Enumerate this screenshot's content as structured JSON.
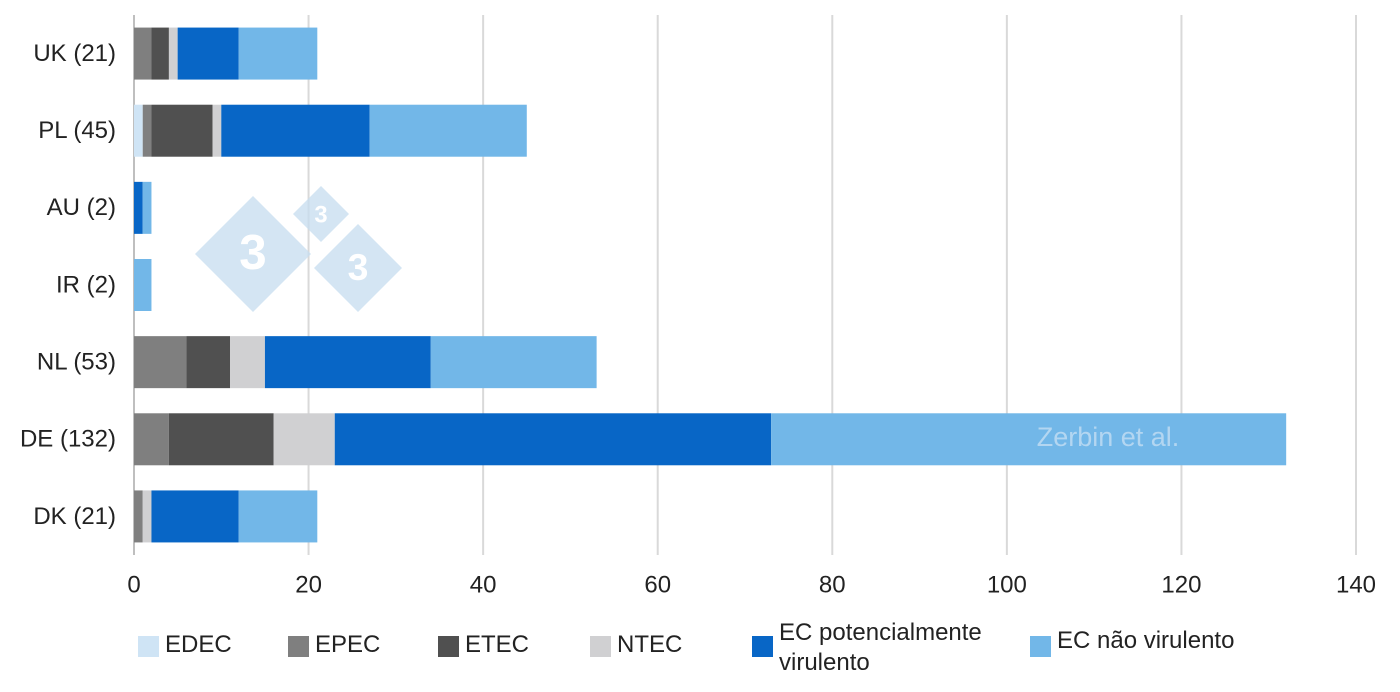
{
  "chart_data": {
    "type": "stacked_barh",
    "categories": [
      "UK (21)",
      "PL (45)",
      "AU (2)",
      "IR (2)",
      "NL (53)",
      "DE (132)",
      "DK (21)"
    ],
    "series": [
      {
        "name": "EDEC",
        "color": "#cfe4f5",
        "values": [
          0,
          1,
          0,
          0,
          0,
          0,
          0
        ]
      },
      {
        "name": "EPEC",
        "color": "#7f7f7f",
        "values": [
          2,
          1,
          0,
          0,
          6,
          4,
          1
        ]
      },
      {
        "name": "ETEC",
        "color": "#505050",
        "values": [
          2,
          7,
          0,
          0,
          5,
          12,
          0
        ]
      },
      {
        "name": "NTEC",
        "color": "#d0d0d2",
        "values": [
          1,
          1,
          0,
          0,
          4,
          7,
          1
        ]
      },
      {
        "name": "EC potencialmente virulento",
        "color": "#0866c6",
        "values": [
          7,
          17,
          1,
          0,
          19,
          50,
          10
        ]
      },
      {
        "name": "EC não virulento",
        "color": "#72b7e8",
        "values": [
          9,
          18,
          1,
          2,
          19,
          59,
          9
        ]
      }
    ],
    "xlim": [
      0,
      140
    ],
    "xticks": [
      0,
      20,
      40,
      60,
      80,
      100,
      120,
      140
    ],
    "grid": true,
    "annotation": "Zerbin et al.",
    "watermark_logo": "3"
  }
}
